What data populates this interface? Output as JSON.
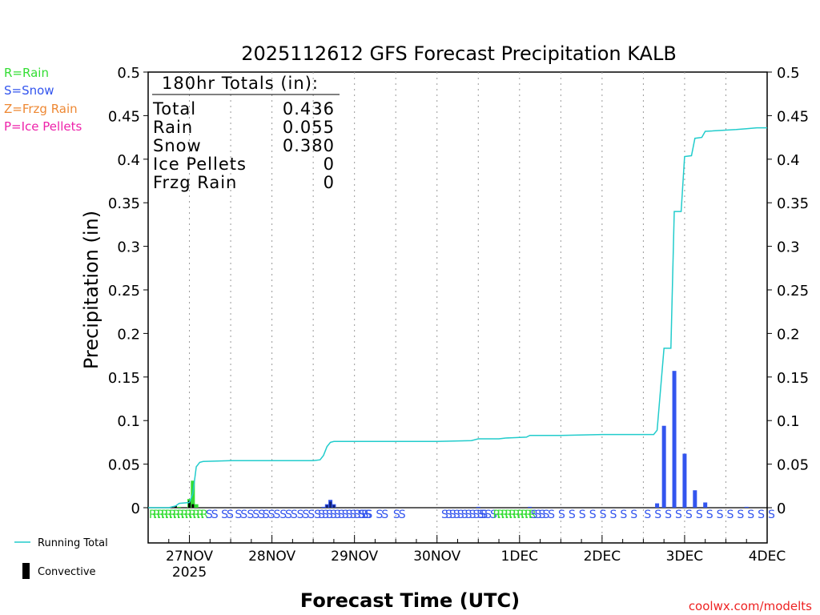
{
  "chart_data": {
    "type": "bar",
    "title": "2025112612 GFS Forecast Precipitation KALB",
    "xlabel": "Forecast Time (UTC)",
    "ylabel": "Precipitation (in)",
    "ylim": [
      0,
      0.5
    ],
    "yticks": [
      "0",
      "0.05",
      "0.1",
      "0.15",
      "0.2",
      "0.25",
      "0.3",
      "0.35",
      "0.4",
      "0.45",
      "0.5"
    ],
    "xlim_hours": [
      0,
      180
    ],
    "xticks": [
      {
        "label": "27NOV",
        "sub": "2025",
        "hour": 12
      },
      {
        "label": "28NOV",
        "sub": "",
        "hour": 36
      },
      {
        "label": "29NOV",
        "sub": "",
        "hour": 60
      },
      {
        "label": "30NOV",
        "sub": "",
        "hour": 84
      },
      {
        "label": "1DEC",
        "sub": "",
        "hour": 108
      },
      {
        "label": "2DEC",
        "sub": "",
        "hour": 132
      },
      {
        "label": "3DEC",
        "sub": "",
        "hour": 156
      },
      {
        "label": "4DEC",
        "sub": "",
        "hour": 180
      }
    ],
    "legend_types": [
      {
        "label": "R=Rain",
        "color": "#33dd33"
      },
      {
        "label": "S=Snow",
        "color": "#3355ee"
      },
      {
        "label": "Z=Frzg Rain",
        "color": "#ee8833"
      },
      {
        "label": "P=Ice Pellets",
        "color": "#ee22aa"
      }
    ],
    "legend_lines": [
      {
        "label": "Running Total",
        "color": "#22cccc",
        "kind": "line"
      },
      {
        "label": "Convective",
        "color": "#000000",
        "kind": "bar"
      }
    ],
    "totals": {
      "heading": "180hr Totals (in):",
      "rows": [
        {
          "label": "Total",
          "value": "0.436"
        },
        {
          "label": "Rain",
          "value": "0.055"
        },
        {
          "label": "Snow",
          "value": "0.380"
        },
        {
          "label": "Ice Pellets",
          "value": "0"
        },
        {
          "label": "Frzg Rain",
          "value": "0"
        }
      ]
    },
    "bars": [
      {
        "hour": 9,
        "value": 0.001,
        "type": "R"
      },
      {
        "hour": 12,
        "value": 0.01,
        "type": "R"
      },
      {
        "hour": 13,
        "value": 0.031,
        "type": "R"
      },
      {
        "hour": 14,
        "value": 0.004,
        "type": "R"
      },
      {
        "hour": 51,
        "value": 0.001,
        "type": "S"
      },
      {
        "hour": 52,
        "value": 0.004,
        "type": "S"
      },
      {
        "hour": 53,
        "value": 0.009,
        "type": "S"
      },
      {
        "hour": 54,
        "value": 0.004,
        "type": "S"
      },
      {
        "hour": 96,
        "value": 0.001,
        "type": "S"
      },
      {
        "hour": 111,
        "value": 0.001,
        "type": "S"
      },
      {
        "hour": 148,
        "value": 0.005,
        "type": "S"
      },
      {
        "hour": 150,
        "value": 0.094,
        "type": "S"
      },
      {
        "hour": 153,
        "value": 0.157,
        "type": "S"
      },
      {
        "hour": 156,
        "value": 0.062,
        "type": "S"
      },
      {
        "hour": 159,
        "value": 0.02,
        "type": "S"
      },
      {
        "hour": 162,
        "value": 0.006,
        "type": "S"
      },
      {
        "hour": 174,
        "value": 0.001,
        "type": "S"
      }
    ],
    "convective": [
      {
        "hour": 8,
        "value": 0.002
      },
      {
        "hour": 12,
        "value": 0.008
      },
      {
        "hour": 13,
        "value": 0.004
      },
      {
        "hour": 52,
        "value": 0.003
      },
      {
        "hour": 53,
        "value": 0.007
      },
      {
        "hour": 54,
        "value": 0.003
      }
    ],
    "running_total": [
      [
        0,
        0
      ],
      [
        6,
        0
      ],
      [
        8,
        0.002
      ],
      [
        9,
        0.005
      ],
      [
        12,
        0.006
      ],
      [
        13,
        0.016
      ],
      [
        14,
        0.047
      ],
      [
        15,
        0.052
      ],
      [
        16,
        0.053
      ],
      [
        24,
        0.054
      ],
      [
        48,
        0.054
      ],
      [
        50,
        0.055
      ],
      [
        51,
        0.06
      ],
      [
        52,
        0.07
      ],
      [
        53,
        0.075
      ],
      [
        54,
        0.076
      ],
      [
        60,
        0.076
      ],
      [
        84,
        0.076
      ],
      [
        94,
        0.077
      ],
      [
        96,
        0.079
      ],
      [
        102,
        0.079
      ],
      [
        104,
        0.08
      ],
      [
        110,
        0.081
      ],
      [
        111,
        0.083
      ],
      [
        120,
        0.083
      ],
      [
        132,
        0.084
      ],
      [
        147,
        0.084
      ],
      [
        148,
        0.089
      ],
      [
        150,
        0.183
      ],
      [
        152,
        0.183
      ],
      [
        153,
        0.34
      ],
      [
        155,
        0.34
      ],
      [
        156,
        0.403
      ],
      [
        158,
        0.404
      ],
      [
        159,
        0.424
      ],
      [
        161,
        0.425
      ],
      [
        162,
        0.432
      ],
      [
        171,
        0.434
      ],
      [
        174,
        0.435
      ],
      [
        177,
        0.436
      ],
      [
        180,
        0.436
      ]
    ],
    "type_strip": [
      {
        "hour": 0,
        "type": "R",
        "count": 14
      },
      {
        "hour": 16.5,
        "type": "S",
        "count": 2
      },
      {
        "hour": 21,
        "type": "S",
        "count": 2
      },
      {
        "hour": 25,
        "type": "S",
        "count": 2
      },
      {
        "hour": 28.5,
        "type": "S",
        "count": 3
      },
      {
        "hour": 33,
        "type": "S",
        "count": 3
      },
      {
        "hour": 38,
        "type": "S",
        "count": 3
      },
      {
        "hour": 43,
        "type": "S",
        "count": 3
      },
      {
        "hour": 48,
        "type": "S",
        "count": 14
      },
      {
        "hour": 61,
        "type": "S",
        "count": 2
      },
      {
        "hour": 66,
        "type": "S",
        "count": 2
      },
      {
        "hour": 71,
        "type": "S",
        "count": 2
      },
      {
        "hour": 85,
        "type": "S",
        "count": 11
      },
      {
        "hour": 96,
        "type": "S",
        "count": 3
      },
      {
        "hour": 100,
        "type": "R",
        "count": 10
      },
      {
        "hour": 111,
        "type": "S",
        "count": 4
      },
      {
        "hour": 116,
        "type": "S",
        "count": 1
      },
      {
        "hour": 119,
        "type": "S",
        "count": 1
      },
      {
        "hour": 122,
        "type": "S",
        "count": 1
      },
      {
        "hour": 125,
        "type": "S",
        "count": 1
      },
      {
        "hour": 128,
        "type": "S",
        "count": 1
      },
      {
        "hour": 131,
        "type": "S",
        "count": 1
      },
      {
        "hour": 134,
        "type": "S",
        "count": 1
      },
      {
        "hour": 137,
        "type": "S",
        "count": 1
      },
      {
        "hour": 140,
        "type": "S",
        "count": 1
      },
      {
        "hour": 144,
        "type": "S",
        "count": 1
      },
      {
        "hour": 147,
        "type": "S",
        "count": 1
      },
      {
        "hour": 150,
        "type": "S",
        "count": 1
      },
      {
        "hour": 153,
        "type": "S",
        "count": 1
      },
      {
        "hour": 156,
        "type": "S",
        "count": 1
      },
      {
        "hour": 159,
        "type": "S",
        "count": 1
      },
      {
        "hour": 162,
        "type": "S",
        "count": 1
      },
      {
        "hour": 165,
        "type": "S",
        "count": 1
      },
      {
        "hour": 168,
        "type": "S",
        "count": 1
      },
      {
        "hour": 171,
        "type": "S",
        "count": 1
      },
      {
        "hour": 174,
        "type": "S",
        "count": 1
      },
      {
        "hour": 177,
        "type": "S",
        "count": 1
      },
      {
        "hour": 180,
        "type": "S",
        "count": 1
      }
    ],
    "credit": "coolwx.com/modelts"
  }
}
